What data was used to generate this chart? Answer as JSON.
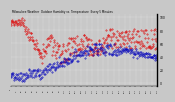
{
  "title": "Milwaukee Weather  Outdoor Humidity vs. Temperature  Every 5 Minutes",
  "bg_color": "#c8c8c8",
  "plot_bg": "#c8c8c8",
  "red_color": "#dd0000",
  "blue_color": "#0000bb",
  "ylim": [
    -5,
    105
  ],
  "num_points": 300,
  "title_fontsize": 2.0,
  "ytick_labels": [
    "100",
    "80",
    "60",
    "40",
    "20",
    "0"
  ],
  "ytick_vals": [
    100,
    80,
    60,
    40,
    20,
    0
  ]
}
